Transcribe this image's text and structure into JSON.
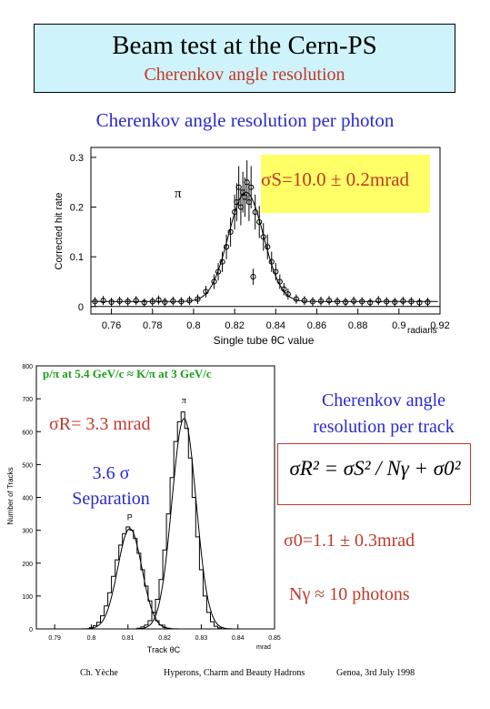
{
  "title": {
    "main": "Beam test  at the Cern-PS",
    "sub": "Cherenkov angle resolution"
  },
  "section1": {
    "heading": "Cherenkov angle resolution per photon",
    "sigma_s": "σS=10.0 ± 0.2mrad",
    "pion_label": "π"
  },
  "chart_data": [
    {
      "type": "scatter",
      "ylabel": "Corrected hit rate",
      "xlabel": "Single tube θC value",
      "x_unit": "radians",
      "xlim": [
        0.75,
        0.92
      ],
      "ylim": [
        -0.015,
        0.32
      ],
      "x_ticks": [
        "0.76",
        "0.78",
        "0.8",
        "0.82",
        "0.84",
        "0.86",
        "0.88",
        "0.9",
        "0.92"
      ],
      "y_ticks": [
        "0",
        "0.1",
        "0.2",
        "0.3"
      ],
      "series": [
        {
          "values_x": [
            0.752,
            0.756,
            0.76,
            0.764,
            0.768,
            0.772,
            0.776,
            0.78,
            0.783,
            0.786,
            0.79,
            0.794,
            0.798,
            0.802,
            0.806,
            0.81,
            0.812,
            0.814,
            0.816,
            0.818,
            0.82,
            0.821,
            0.822,
            0.823,
            0.824,
            0.825,
            0.826,
            0.827,
            0.828,
            0.829,
            0.83,
            0.832,
            0.834,
            0.836,
            0.838,
            0.84,
            0.842,
            0.844,
            0.846,
            0.85,
            0.854,
            0.858,
            0.862,
            0.866,
            0.87,
            0.874,
            0.878,
            0.882,
            0.886,
            0.89,
            0.894,
            0.898,
            0.902,
            0.906,
            0.91,
            0.914
          ],
          "values_y": [
            0.01,
            0.012,
            0.009,
            0.011,
            0.01,
            0.012,
            0.008,
            0.01,
            0.013,
            0.009,
            0.011,
            0.01,
            0.012,
            0.015,
            0.03,
            0.05,
            0.07,
            0.09,
            0.12,
            0.15,
            0.19,
            0.21,
            0.24,
            0.2,
            0.23,
            0.22,
            0.25,
            0.21,
            0.24,
            0.06,
            0.19,
            0.17,
            0.14,
            0.12,
            0.09,
            0.07,
            0.05,
            0.035,
            0.025,
            0.015,
            0.012,
            0.01,
            0.011,
            0.012,
            0.01,
            0.009,
            0.011,
            0.01,
            0.008,
            0.012,
            0.01,
            0.009,
            0.011,
            0.01,
            0.008,
            0.009
          ]
        }
      ]
    },
    {
      "type": "bar",
      "ylabel": "Number of Tracks",
      "xlabel": "Track θC",
      "x_unit": "mrad",
      "xlim": [
        0.785,
        0.85
      ],
      "ylim": [
        0,
        800
      ],
      "x_ticks": [
        "0.79",
        "0.8",
        "0.81",
        "0.82",
        "0.83",
        "0.84",
        "0.85"
      ],
      "y_ticks": [
        "0",
        "100",
        "200",
        "300",
        "400",
        "500",
        "600",
        "700",
        "800"
      ],
      "peak_labels": [
        "P",
        "π"
      ],
      "series": [
        {
          "name": "P",
          "x": [
            0.8,
            0.801,
            0.802,
            0.803,
            0.804,
            0.805,
            0.806,
            0.807,
            0.808,
            0.809,
            0.81,
            0.811,
            0.812,
            0.813,
            0.814,
            0.815,
            0.816,
            0.817,
            0.818,
            0.819,
            0.82,
            0.821
          ],
          "values": [
            4,
            10,
            20,
            40,
            70,
            110,
            160,
            210,
            255,
            290,
            310,
            300,
            275,
            230,
            180,
            130,
            85,
            50,
            25,
            12,
            5,
            2
          ]
        },
        {
          "name": "π",
          "x": [
            0.813,
            0.814,
            0.815,
            0.816,
            0.817,
            0.818,
            0.819,
            0.82,
            0.821,
            0.822,
            0.823,
            0.824,
            0.825,
            0.826,
            0.827,
            0.828,
            0.829,
            0.83,
            0.831,
            0.832,
            0.833,
            0.834,
            0.835
          ],
          "values": [
            2,
            6,
            12,
            25,
            50,
            90,
            150,
            240,
            350,
            460,
            570,
            630,
            660,
            610,
            520,
            400,
            280,
            180,
            100,
            50,
            22,
            8,
            3
          ]
        }
      ]
    }
  ],
  "section2": {
    "beam_label": "p/π at 5.4 GeV/c ≈ K/π at 3 GeV/c",
    "sigma_r": "σR= 3.3 mrad",
    "separation_line1": "3.6 σ",
    "separation_line2": "Separation",
    "heading_line1": "Cherenkov angle",
    "heading_line2": "resolution per track",
    "formula": "σR² = σS² / Nγ + σ0²",
    "sigma0": "σ0=1.1 ± 0.3mrad",
    "ngamma": "Nγ ≈ 10 photons"
  },
  "footer": {
    "author": "Ch. Yèche",
    "conference": "Hyperons, Charm and Beauty Hadrons",
    "place_date": "Genoa,  3rd July 1998"
  }
}
